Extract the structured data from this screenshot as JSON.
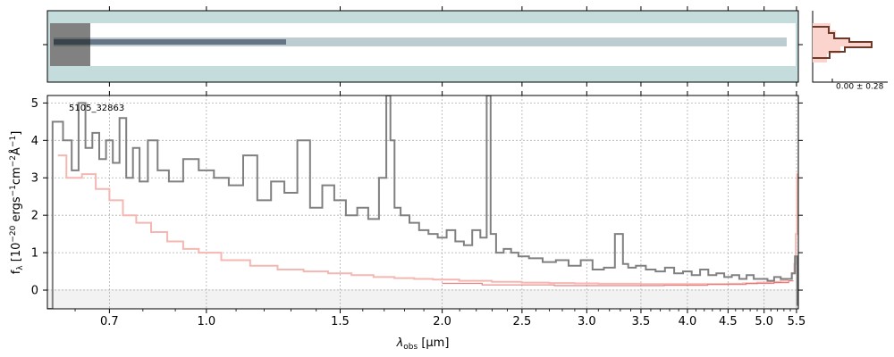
{
  "chart_data": {
    "type": "line",
    "object_label": "5105_32863",
    "xlabel": "λ_obs [μm]",
    "xlabel_main": "λ",
    "xlabel_sub": "obs",
    "xlabel_unit": " [μm]",
    "ylabel": "f_λ [10^-20 ergs^-1cm^-2Å^-1]",
    "ylabel_base": "f",
    "ylabel_sub": "λ",
    "ylabel_unit_a": " [10",
    "ylabel_sup_a": "−20",
    "ylabel_unit_b": " ergs",
    "ylabel_sup_b": "−1",
    "ylabel_unit_c": "cm",
    "ylabel_sup_c": "−2",
    "ylabel_unit_d": "Å",
    "ylabel_sup_d": "−1",
    "ylabel_unit_e": "]",
    "x_scale": "arcsinh-like (compressed at short wavelengths)",
    "x_ticks": [
      0.7,
      1.0,
      1.5,
      2.0,
      2.5,
      3.0,
      3.5,
      4.0,
      4.5,
      5.0,
      5.5
    ],
    "x_tick_labels": [
      "0.7",
      "1.0",
      "1.5",
      "2.0",
      "2.5",
      "3.0",
      "3.5",
      "4.0",
      "4.5",
      "5.0",
      "5.5"
    ],
    "y_ticks": [
      0,
      1,
      2,
      3,
      4,
      5
    ],
    "y_tick_labels": [
      "0",
      "1",
      "2",
      "3",
      "4",
      "5"
    ],
    "xlim": [
      0.52,
      5.53
    ],
    "ylim": [
      -0.5,
      5.2
    ],
    "grid": true,
    "colors": {
      "flux": "#808080",
      "error": "#f4b7b2",
      "model": "#e06060",
      "profile": "#6b3a2a",
      "profile_fill": "#fbd4ce",
      "image_bg": "#c4dcdb",
      "grid": "#b0b0b0"
    },
    "series": [
      {
        "role": "flux",
        "x": [
          0.52,
          0.55,
          0.58,
          0.6,
          0.62,
          0.64,
          0.66,
          0.68,
          0.7,
          0.72,
          0.74,
          0.76,
          0.78,
          0.8,
          0.83,
          0.86,
          0.9,
          0.95,
          1.0,
          1.05,
          1.1,
          1.15,
          1.2,
          1.25,
          1.3,
          1.35,
          1.4,
          1.45,
          1.5,
          1.55,
          1.6,
          1.65,
          1.7,
          1.72,
          1.74,
          1.76,
          1.8,
          1.85,
          1.9,
          1.95,
          2.0,
          2.05,
          2.1,
          2.15,
          2.2,
          2.25,
          2.28,
          2.3,
          2.35,
          2.4,
          2.45,
          2.5,
          2.6,
          2.7,
          2.8,
          2.9,
          3.0,
          3.1,
          3.2,
          3.3,
          3.35,
          3.4,
          3.5,
          3.6,
          3.7,
          3.8,
          3.9,
          4.0,
          4.1,
          4.2,
          4.3,
          4.4,
          4.5,
          4.6,
          4.7,
          4.8,
          4.9,
          5.0,
          5.1,
          5.2,
          5.3,
          5.4,
          5.45,
          5.5,
          5.52
        ],
        "values": [
          -0.5,
          4.5,
          4.0,
          3.2,
          5.0,
          3.8,
          4.2,
          3.5,
          4.0,
          3.4,
          4.6,
          3.0,
          3.8,
          2.9,
          4.0,
          3.2,
          2.9,
          3.5,
          3.2,
          3.0,
          2.8,
          3.6,
          2.4,
          2.9,
          2.6,
          4.0,
          2.2,
          2.8,
          2.4,
          2.0,
          2.2,
          1.9,
          3.0,
          5.2,
          4.0,
          2.2,
          2.0,
          1.8,
          1.6,
          1.5,
          1.4,
          1.6,
          1.3,
          1.2,
          1.6,
          1.4,
          5.2,
          1.5,
          1.0,
          1.1,
          1.0,
          0.9,
          0.85,
          0.75,
          0.8,
          0.65,
          0.8,
          0.55,
          0.6,
          1.5,
          0.7,
          0.6,
          0.65,
          0.55,
          0.5,
          0.6,
          0.45,
          0.5,
          0.4,
          0.55,
          0.4,
          0.45,
          0.35,
          0.4,
          0.3,
          0.4,
          0.3,
          0.3,
          0.25,
          0.35,
          0.3,
          0.3,
          0.45,
          0.9,
          -0.4
        ]
      },
      {
        "role": "error",
        "x": [
          0.55,
          0.6,
          0.64,
          0.68,
          0.72,
          0.76,
          0.8,
          0.85,
          0.9,
          0.95,
          1.0,
          1.1,
          1.2,
          1.3,
          1.4,
          1.5,
          1.6,
          1.7,
          1.8,
          1.9,
          2.0,
          2.2,
          2.4,
          2.6,
          2.8,
          3.0,
          3.2,
          3.4,
          3.6,
          3.8,
          4.0,
          4.2,
          4.4,
          4.6,
          4.8,
          5.0,
          5.2,
          5.3,
          5.4,
          5.45,
          5.48,
          5.5,
          5.52
        ],
        "values": [
          3.6,
          3.0,
          3.1,
          2.7,
          2.4,
          2.0,
          1.8,
          1.55,
          1.3,
          1.1,
          1.0,
          0.8,
          0.65,
          0.55,
          0.5,
          0.45,
          0.4,
          0.35,
          0.32,
          0.3,
          0.28,
          0.25,
          0.22,
          0.2,
          0.19,
          0.18,
          0.17,
          0.17,
          0.16,
          0.16,
          0.16,
          0.16,
          0.16,
          0.17,
          0.18,
          0.2,
          0.22,
          0.25,
          0.3,
          0.45,
          0.7,
          1.5,
          3.1
        ]
      },
      {
        "role": "model",
        "x": [
          2.0,
          2.5,
          3.0,
          3.5,
          4.0,
          4.5,
          5.0,
          5.3,
          5.45
        ],
        "values": [
          0.18,
          0.14,
          0.12,
          0.12,
          0.13,
          0.15,
          0.18,
          0.2,
          0.25
        ]
      }
    ]
  },
  "inset": {
    "label": "0.00 ± 0.28"
  }
}
